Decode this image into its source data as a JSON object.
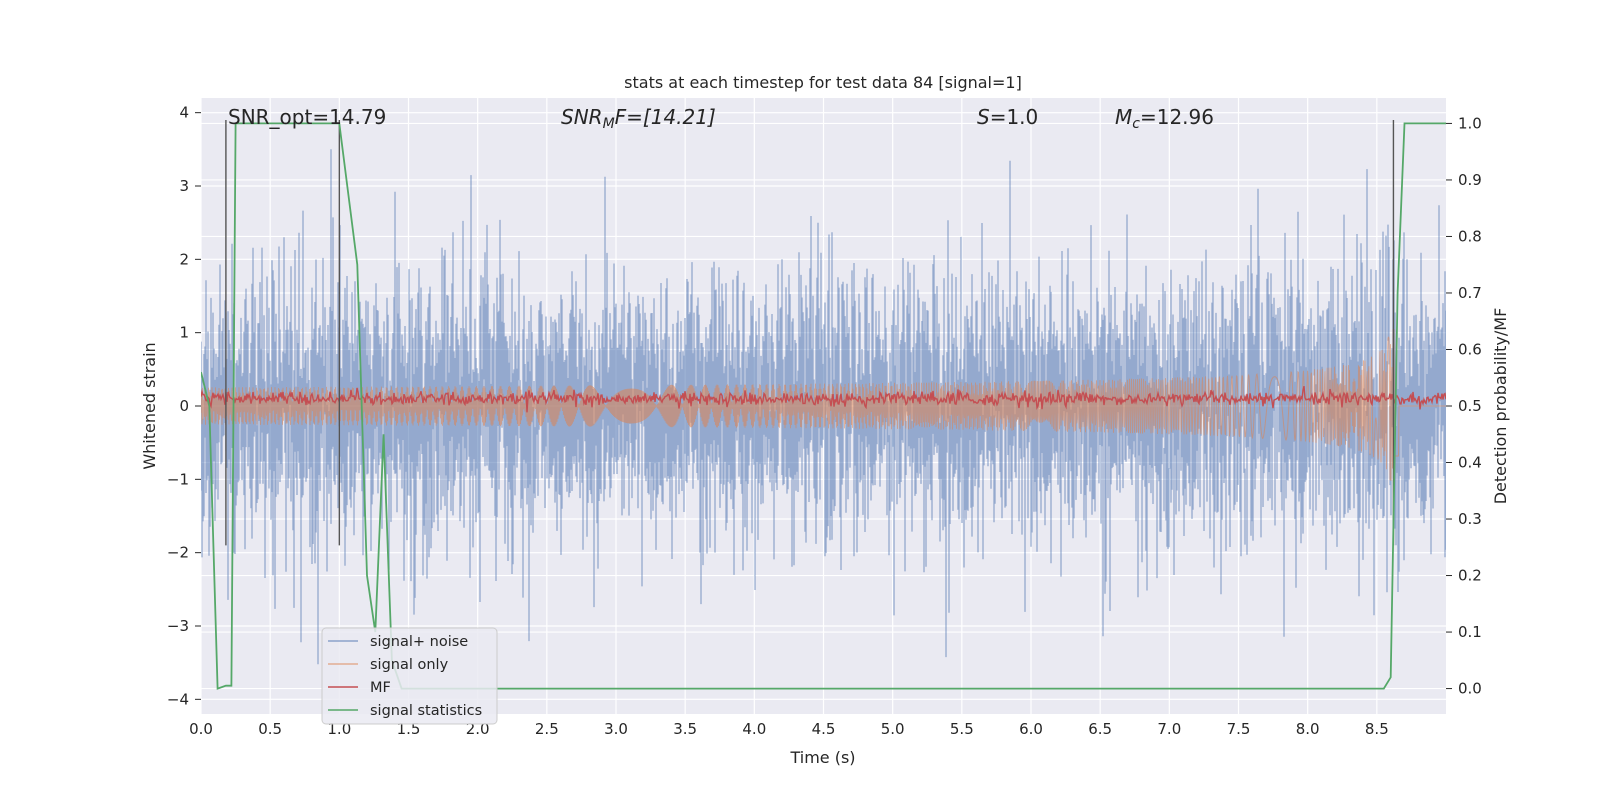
{
  "chart_data": {
    "type": "line",
    "title": "stats at each timestep for test data 84 [signal=1]",
    "xlabel": "Time (s)",
    "ylabel": "Whitened strain",
    "y2label": "Detection probability/MF",
    "xlim": [
      0.0,
      9.0
    ],
    "ylim": [
      -4.2,
      4.2
    ],
    "y2lim": [
      -0.045,
      1.045
    ],
    "xticks": [
      "0.0",
      "0.5",
      "1.0",
      "1.5",
      "2.0",
      "2.5",
      "3.0",
      "3.5",
      "4.0",
      "4.5",
      "5.0",
      "5.5",
      "6.0",
      "6.5",
      "7.0",
      "7.5",
      "8.0",
      "8.5"
    ],
    "yticks": [
      "4",
      "3",
      "2",
      "1",
      "0",
      "−1",
      "−2",
      "−3",
      "−4"
    ],
    "y2ticks": [
      "1.0",
      "0.9",
      "0.8",
      "0.7",
      "0.6",
      "0.5",
      "0.4",
      "0.3",
      "0.2",
      "0.1",
      "0.0"
    ],
    "grid": true,
    "legend_position": "lower-left",
    "annotations": {
      "snr_opt": "SNR_opt=14.79",
      "snr_mf_main": "SNR",
      "snr_mf_sub": "M",
      "snr_mf_rest": "F=[14.21]",
      "s_main": "S",
      "s_rest": "=1.0",
      "mc_main": "M",
      "mc_sub": "c",
      "mc_rest": "=12.96"
    },
    "series": [
      {
        "name": "signal+ noise",
        "color": "#4c72b0",
        "kind": "noise",
        "sigma": 0.75,
        "peak_max": 3.5,
        "peak_min": -3.9
      },
      {
        "name": "signal only",
        "color": "#dd8452",
        "kind": "chirp",
        "t_merger": 8.63,
        "peak_amplitude": 1.05
      },
      {
        "name": "MF",
        "color": "#c44e52",
        "kind": "mf",
        "mean": 0.1
      },
      {
        "name": "signal statistics",
        "color": "#55a868",
        "axis": "y2",
        "x": [
          0.0,
          0.06,
          0.12,
          0.18,
          0.22,
          0.25,
          0.5,
          1.0,
          1.13,
          1.2,
          1.26,
          1.32,
          1.38,
          1.45,
          2.0,
          4.0,
          6.0,
          8.0,
          8.55,
          8.6,
          8.65,
          8.7,
          9.0
        ],
        "y": [
          0.56,
          0.5,
          0.0,
          0.005,
          0.005,
          1.0,
          1.0,
          1.0,
          0.75,
          0.2,
          0.1,
          0.45,
          0.05,
          0.0,
          0.0,
          0.0,
          0.0,
          0.0,
          0.0,
          0.02,
          0.7,
          1.0,
          1.0
        ]
      }
    ],
    "vertical_markers": [
      0.18,
      1.0,
      8.62
    ]
  }
}
